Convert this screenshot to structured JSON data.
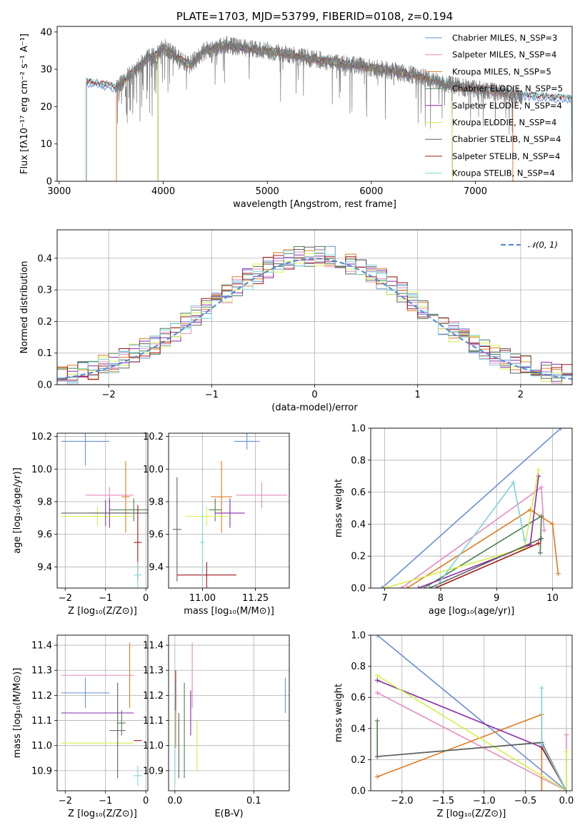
{
  "colors": [
    "#6a8fd8",
    "#e78ac3",
    "#e07a20",
    "#4d7f52",
    "#8a2aa8",
    "#d4f04a",
    "#606060",
    "#a01818",
    "#7fd3d8"
  ],
  "chart_data": [
    {
      "id": "spectrum",
      "type": "line",
      "title": "PLATE=1703, MJD=53799, FIBERID=0108, z=0.194",
      "xlabel": "wavelength [Angstrom, rest frame]",
      "ylabel": "Flux [fλ10⁻¹⁷ erg cm⁻² s⁻¹ A⁻¹]",
      "xlim": [
        2980,
        7930
      ],
      "ylim": [
        0,
        41.5
      ],
      "xticks": [
        3000,
        4000,
        5000,
        6000,
        7000
      ],
      "yticks": [
        0,
        10,
        20,
        30,
        40
      ],
      "grid": false,
      "legend": "upper right",
      "legend_entries": [
        "Chabrier MILES, N_SSP=3",
        "Salpeter MILES, N_SSP=4",
        "Kroupa MILES, N_SSP=5",
        "Chabrier ELODIE, N_SSP=5",
        "Salpeter ELODIE, N_SSP=4",
        "Kroupa ELODIE, N_SSP=4",
        "Chabrier STELIB, N_SSP=4",
        "Salpeter STELIB, N_SSP=4",
        "Kroupa STELIB, N_SSP=4"
      ],
      "model_coverage": [
        [
          3260,
          7930
        ],
        [
          3550,
          7360
        ],
        [
          3550,
          7360
        ],
        [
          3950,
          6780
        ],
        [
          3950,
          6780
        ],
        [
          3950,
          6780
        ],
        [
          3260,
          7930
        ],
        [
          3260,
          7930
        ],
        [
          3260,
          7930
        ]
      ],
      "continuum": {
        "x": [
          3260,
          3400,
          3550,
          3700,
          3850,
          3950,
          4000,
          4100,
          4250,
          4400,
          4600,
          4800,
          5000,
          5300,
          5600,
          6000,
          6400,
          6800,
          7200,
          7400,
          7930
        ],
        "y": [
          26.5,
          26,
          25,
          29,
          33,
          34,
          36,
          34,
          31,
          35,
          36.5,
          35.5,
          35,
          33.5,
          32,
          30.5,
          28.5,
          25.5,
          24,
          23,
          22
        ]
      },
      "data_flux_range": [
        3550,
        7450
      ]
    },
    {
      "id": "residuals",
      "type": "histogram",
      "xlabel": "(data-model)/error",
      "ylabel": "Normed distribution",
      "xlim": [
        -2.5,
        2.5
      ],
      "ylim": [
        0,
        0.49
      ],
      "xticks": [
        -2,
        -1,
        0,
        1,
        2
      ],
      "yticks": [
        0.0,
        0.1,
        0.2,
        0.3,
        0.4
      ],
      "grid": true,
      "legend": "upper right",
      "legend_entries": [
        "𝒩(0, 1)"
      ],
      "bin_width": 0.1
    },
    {
      "id": "age-vs-Z",
      "type": "errorbar",
      "xlabel": "Z [log₁₀(Z/Z⊙)]",
      "ylabel": "age  [log₁₀(age/yr)]",
      "xlim": [
        -2.2,
        0.05
      ],
      "ylim": [
        9.27,
        10.22
      ],
      "xticks": [
        -2,
        -1,
        0
      ],
      "yticks": [
        9.4,
        9.6,
        9.8,
        10.0,
        10.2
      ],
      "grid": true,
      "points": [
        {
          "x": -1.5,
          "xerr": 0.6,
          "y": 10.17,
          "yerr": 0.15
        },
        {
          "x": -0.9,
          "xerr": 0.6,
          "y": 9.84,
          "yerr": 0.05
        },
        {
          "x": -0.5,
          "xerr": 0.1,
          "y": 9.83,
          "yerr": 0.22
        },
        {
          "x": -0.3,
          "xerr": 0.6,
          "y": 9.75,
          "yerr": 0.07
        },
        {
          "x": -0.9,
          "xerr": 0.5,
          "y": 9.73,
          "yerr": 0.09
        },
        {
          "x": -1.2,
          "xerr": 0.9,
          "y": 9.71,
          "yerr": 0.06
        },
        {
          "x": -1.0,
          "xerr": 1.1,
          "y": 9.73,
          "yerr": 0.08
        },
        {
          "x": -0.2,
          "xerr": 0.1,
          "y": 9.55,
          "yerr": 0.23
        },
        {
          "x": -0.2,
          "xerr": 0.1,
          "y": 9.35,
          "yerr": 0.08
        }
      ]
    },
    {
      "id": "age-vs-mass",
      "type": "errorbar",
      "xlabel": "mass [log₁₀(M/M⊙)]",
      "ylabel": "",
      "xlim": [
        10.84,
        11.41
      ],
      "ylim": [
        9.27,
        10.22
      ],
      "xticks": [
        11.0,
        11.25
      ],
      "yticks": [
        9.4,
        9.6,
        9.8,
        10.0,
        10.2
      ],
      "grid": true,
      "points": [
        {
          "x": 11.21,
          "xerr": 0.06,
          "y": 10.17,
          "yerr": 0.05
        },
        {
          "x": 11.28,
          "xerr": 0.12,
          "y": 9.84,
          "yerr": 0.08
        },
        {
          "x": 11.09,
          "xerr": 0.05,
          "y": 9.83,
          "yerr": 0.22
        },
        {
          "x": 11.06,
          "xerr": 0.03,
          "y": 9.75,
          "yerr": 0.07
        },
        {
          "x": 11.13,
          "xerr": 0.07,
          "y": 9.73,
          "yerr": 0.09
        },
        {
          "x": 11.02,
          "xerr": 0.1,
          "y": 9.71,
          "yerr": 0.06
        },
        {
          "x": 10.88,
          "xerr": 0.02,
          "y": 9.63,
          "yerr": 0.32
        },
        {
          "x": 11.02,
          "xerr": 0.14,
          "y": 9.35,
          "yerr": 0.08
        },
        {
          "x": 11.0,
          "xerr": 0.01,
          "y": 9.55,
          "yerr": 0.23
        }
      ]
    },
    {
      "id": "weight-vs-age",
      "type": "line",
      "xlabel": "age  [log₁₀(age/yr)]",
      "ylabel": "mass weight",
      "xlim": [
        6.75,
        10.35
      ],
      "ylim": [
        0,
        1
      ],
      "xticks": [
        7,
        8,
        9,
        10
      ],
      "yticks": [
        0.0,
        0.2,
        0.4,
        0.6,
        0.8,
        1.0
      ],
      "grid": true
    },
    {
      "id": "mass-vs-Z",
      "type": "errorbar",
      "xlabel": "Z [log₁₀(Z/Z⊙)]",
      "ylabel": "mass [log₁₀(M/M⊙)]",
      "xlim": [
        -2.2,
        0.05
      ],
      "ylim": [
        10.82,
        11.44
      ],
      "xticks": [
        -2,
        -1,
        0
      ],
      "yticks": [
        10.9,
        11.0,
        11.1,
        11.2,
        11.3,
        11.4
      ],
      "grid": true,
      "points": [
        {
          "x": -1.5,
          "xerr": 0.6,
          "y": 11.21,
          "yerr": 0.06
        },
        {
          "x": -1.2,
          "xerr": 0.9,
          "y": 11.28,
          "yerr": 0.0
        },
        {
          "x": -0.4,
          "xerr": 0.0,
          "y": 11.28,
          "yerr": 0.13
        },
        {
          "x": -0.6,
          "xerr": 0.1,
          "y": 11.09,
          "yerr": 0.05
        },
        {
          "x": -1.2,
          "xerr": 0.9,
          "y": 11.13,
          "yerr": 0.0
        },
        {
          "x": -1.2,
          "xerr": 0.9,
          "y": 11.01,
          "yerr": 0.0
        },
        {
          "x": -0.7,
          "xerr": 0.2,
          "y": 11.06,
          "yerr": 0.19
        },
        {
          "x": -0.2,
          "xerr": 0.1,
          "y": 11.02,
          "yerr": 0.0
        },
        {
          "x": -0.2,
          "xerr": 0.1,
          "y": 10.88,
          "yerr": 0.04
        }
      ]
    },
    {
      "id": "mass-vs-EBV",
      "type": "errorbar",
      "xlabel": "E(B-V)",
      "ylabel": "",
      "xlim": [
        -0.008,
        0.145
      ],
      "ylim": [
        10.82,
        11.44
      ],
      "xticks": [
        0.0,
        0.1
      ],
      "yticks": [
        10.9,
        11.0,
        11.1,
        11.2,
        11.3,
        11.4
      ],
      "grid": true,
      "points": [
        {
          "x": 0.14,
          "xerr": 0.0,
          "y": 11.2,
          "yerr": 0.07
        },
        {
          "x": 0.022,
          "xerr": 0.0,
          "y": 11.28,
          "yerr": 0.13
        },
        {
          "x": 0.001,
          "xerr": 0.0,
          "y": 11.09,
          "yerr": 0.1
        },
        {
          "x": 0.012,
          "xerr": 0.0,
          "y": 11.06,
          "yerr": 0.19
        },
        {
          "x": 0.02,
          "xerr": 0.0,
          "y": 11.13,
          "yerr": 0.09
        },
        {
          "x": 0.028,
          "xerr": 0.0,
          "y": 11.0,
          "yerr": 0.1
        },
        {
          "x": 0.005,
          "xerr": 0.0,
          "y": 11.0,
          "yerr": 0.13
        },
        {
          "x": 0.001,
          "xerr": 0.0,
          "y": 11.22,
          "yerr": 0.08
        },
        {
          "x": 0.0,
          "xerr": 0.0,
          "y": 11.05,
          "yerr": 0.2
        }
      ]
    },
    {
      "id": "weight-vs-Z",
      "type": "line",
      "xlabel": "Z [log₁₀(Z/Z⊙)]",
      "ylabel": "mass weight",
      "xlim": [
        -2.38,
        0.07
      ],
      "ylim": [
        0,
        1
      ],
      "xticks": [
        -2.0,
        -1.5,
        -1.0,
        -0.5,
        0.0
      ],
      "yticks": [
        0.0,
        0.2,
        0.4,
        0.6,
        0.8,
        1.0
      ],
      "grid": true
    }
  ]
}
